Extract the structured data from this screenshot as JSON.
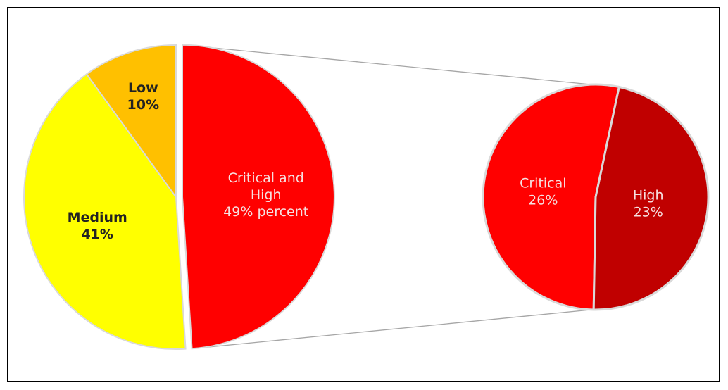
{
  "chart_data": {
    "type": "pie",
    "subtype": "pie-of-pie",
    "main": {
      "slices": [
        {
          "label_lines": [
            "Critical and",
            "High",
            "49% percent"
          ],
          "value": 49,
          "color": "#ff0000"
        },
        {
          "label_lines": [
            "Medium",
            "41%"
          ],
          "value": 41,
          "color": "#ffff00"
        },
        {
          "label_lines": [
            "Low",
            "10%"
          ],
          "value": 10,
          "color": "#ffc000"
        }
      ]
    },
    "secondary": {
      "breakdown_of": "Critical and High",
      "slices": [
        {
          "label_lines": [
            "Critical",
            "26%"
          ],
          "value": 26,
          "color": "#ff0000"
        },
        {
          "label_lines": [
            "High",
            "23%"
          ],
          "value": 23,
          "color": "#c00000"
        }
      ]
    },
    "connector_color": "#a6a6a6",
    "separator_color": "#d9d9d9"
  }
}
